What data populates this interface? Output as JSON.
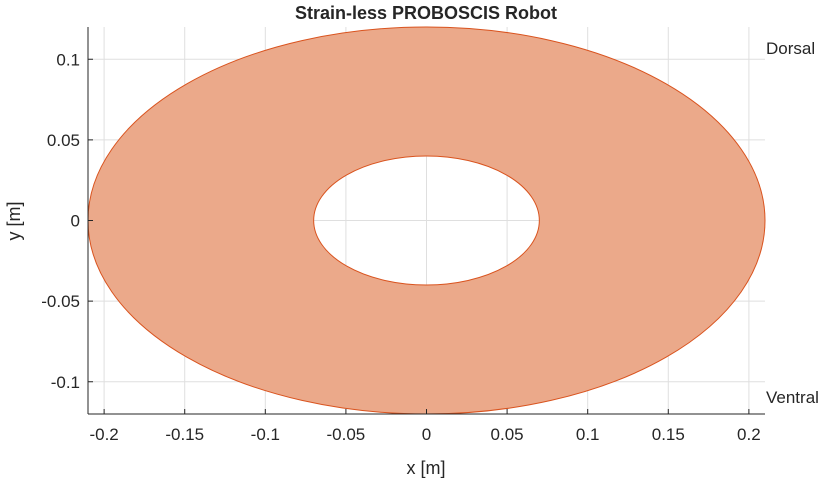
{
  "chart_data": {
    "type": "area",
    "title": "Strain-less PROBOSCIS Robot",
    "xlabel": "x [m]",
    "ylabel": "y [m]",
    "xlim": [
      -0.21,
      0.21
    ],
    "ylim": [
      -0.12,
      0.12
    ],
    "xticks": [
      -0.2,
      -0.15,
      -0.1,
      -0.05,
      0,
      0.05,
      0.1,
      0.15,
      0.2
    ],
    "xtick_labels": [
      "-0.2",
      "-0.15",
      "-0.1",
      "-0.05",
      "0",
      "0.05",
      "0.1",
      "0.15",
      "0.2"
    ],
    "yticks": [
      0.1,
      0.05,
      0,
      -0.05,
      -0.1
    ],
    "ytick_labels": [
      "0.1",
      "0.05",
      "0",
      "-0.05",
      "-0.1"
    ],
    "grid": true,
    "shapes": [
      {
        "kind": "elliptical-ring",
        "center": [
          0,
          0
        ],
        "outer_semi_axes": [
          0.21,
          0.12
        ],
        "inner_semi_axes": [
          0.07,
          0.04
        ],
        "fill_color": "#eba98a",
        "edge_color": "#d9531e"
      }
    ],
    "annotations": [
      {
        "text": "Dorsal",
        "position": "top-right"
      },
      {
        "text": "Ventral",
        "position": "bottom-right"
      }
    ]
  }
}
